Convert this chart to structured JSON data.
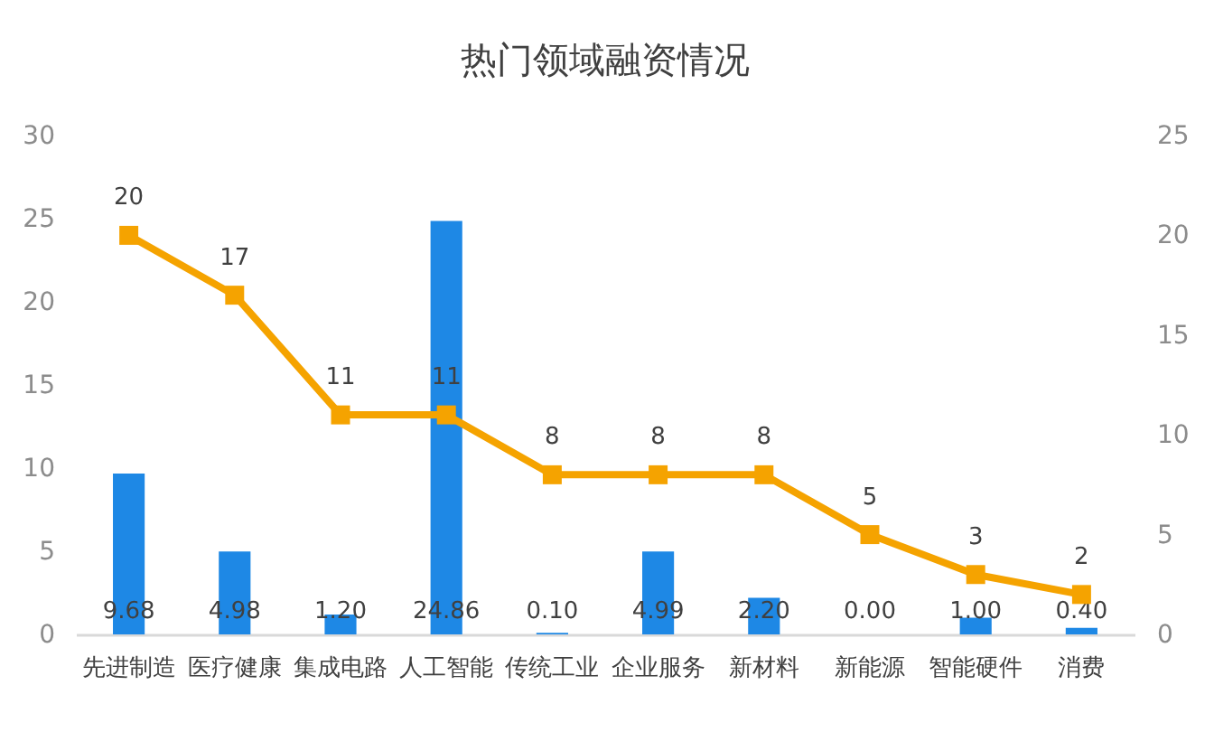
{
  "chart_data": {
    "type": "bar",
    "title": "热门领域融资情况",
    "categories": [
      "先进制造",
      "医疗健康",
      "集成电路",
      "人工智能",
      "传统工业",
      "企业服务",
      "新材料",
      "新能源",
      "智能硬件",
      "消费"
    ],
    "series": [
      {
        "color": "#1e88e5",
        "values": [
          9.68,
          4.98,
          1.2,
          24.86,
          0.1,
          4.99,
          2.2,
          0.0,
          1.0,
          0.4
        ],
        "value_labels": [
          "9.68",
          "4.98",
          "1.20",
          "24.86",
          "0.10",
          "4.99",
          "2.20",
          "0.00",
          "1.00",
          "0.40"
        ]
      },
      {
        "type": "line",
        "axis": "y2",
        "color": "#f5a300",
        "values": [
          20,
          17,
          11,
          11,
          8,
          8,
          8,
          5,
          3,
          2
        ],
        "value_labels": [
          "20",
          "17",
          "11",
          "11",
          "8",
          "8",
          "8",
          "5",
          "3",
          "2"
        ]
      }
    ],
    "ylim": [
      0,
      30
    ],
    "yticks": [
      0,
      5,
      10,
      15,
      20,
      25,
      30
    ],
    "y2lim": [
      0,
      25
    ],
    "y2ticks": [
      0,
      5,
      10,
      15,
      20,
      25
    ],
    "marker": "square"
  }
}
